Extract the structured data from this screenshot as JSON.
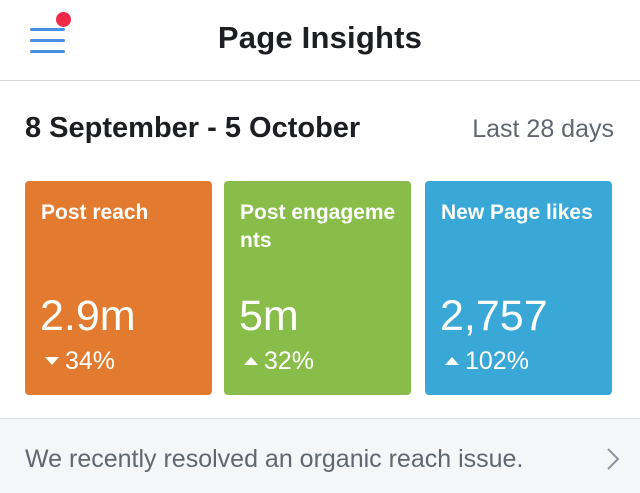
{
  "header": {
    "title": "Page Insights",
    "menu_icon": "hamburger-menu-icon",
    "notification_color": "#f02849"
  },
  "summary": {
    "date_range": "8 September - 5 October",
    "period": "Last 28 days"
  },
  "cards": [
    {
      "label": "Post reach",
      "value": "2.9m",
      "change": "34%",
      "direction": "down",
      "color": "#e27b2f"
    },
    {
      "label": "Post engagements",
      "value": "5m",
      "change": "32%",
      "direction": "up",
      "color": "#88bd49"
    },
    {
      "label": "New Page likes",
      "value": "2,757",
      "change": "102%",
      "direction": "up",
      "color": "#39a8d6"
    }
  ],
  "notice": {
    "text": "We recently resolved an organic reach issue.",
    "icon": "chevron-right-icon"
  }
}
